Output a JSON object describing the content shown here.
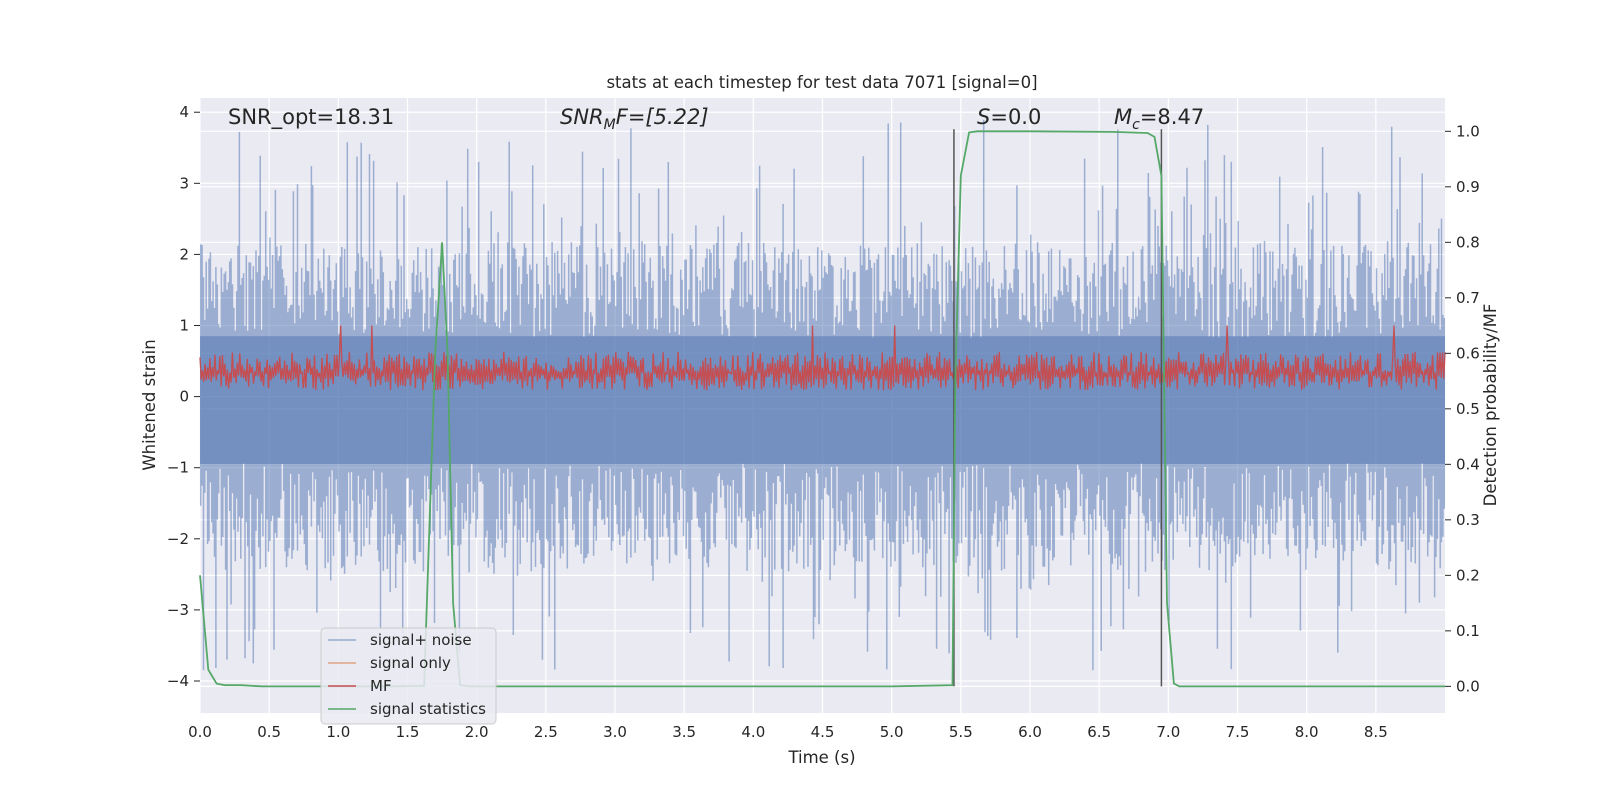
{
  "chart_data": {
    "type": "line",
    "title": "stats at each timestep for test data 7071 [signal=0]",
    "xlabel": "Time (s)",
    "ylabel_left": "Whitened strain",
    "ylabel_right": "Detection probability/MF",
    "xlim": [
      0.0,
      9.0
    ],
    "ylim_left": [
      -4.45,
      4.2
    ],
    "ylim_right": [
      -0.048,
      1.06
    ],
    "x_ticks": [
      "0.0",
      "0.5",
      "1.0",
      "1.5",
      "2.0",
      "2.5",
      "3.0",
      "3.5",
      "4.0",
      "4.5",
      "5.0",
      "5.5",
      "6.0",
      "6.5",
      "7.0",
      "7.5",
      "8.0",
      "8.5"
    ],
    "y_ticks_left": [
      "−4",
      "−3",
      "−2",
      "−1",
      "0",
      "1",
      "2",
      "3",
      "4"
    ],
    "y_ticks_right": [
      "0.0",
      "0.1",
      "0.2",
      "0.3",
      "0.4",
      "0.5",
      "0.6",
      "0.7",
      "0.8",
      "0.9",
      "1.0"
    ],
    "grid": true,
    "legend_position": "lower-left",
    "annotations": {
      "snr_opt": "SNR_opt=18.31",
      "snr_mf_main": "SNR",
      "snr_mf_sub": "M",
      "snr_mf_rest": "F=[5.22]",
      "s_main": "S",
      "s_rest": "=0.0",
      "mc_main": "M",
      "mc_sub": "c",
      "mc_rest": "=8.47"
    },
    "vlines_x": [
      5.45,
      6.95
    ],
    "noise_envelope": {
      "time_range": [
        0.0,
        9.0
      ],
      "typical_upper": 1.5,
      "typical_lower": -1.7,
      "peak_max": 3.9,
      "peak_min": -3.85,
      "color": "#4c72b0"
    },
    "mf_band": {
      "time_range": [
        0.0,
        9.0
      ],
      "typical_range": [
        0.09,
        0.63
      ],
      "peak_max": 1.0,
      "color": "#c44e52"
    },
    "series": [
      {
        "name": "signal+ noise",
        "color": "#4c72b0",
        "legend_label": "signal+ noise"
      },
      {
        "name": "signal only",
        "color": "#dd8452",
        "legend_label": "signal only"
      },
      {
        "name": "MF",
        "color": "#c44e52",
        "legend_label": "MF"
      },
      {
        "name": "signal statistics",
        "color": "#55a868",
        "legend_label": "signal statistics",
        "axis": "right",
        "x": [
          0.0,
          0.06,
          0.12,
          0.18,
          0.3,
          0.45,
          0.7,
          1.0,
          1.4,
          1.62,
          1.7,
          1.75,
          1.79,
          1.83,
          1.88,
          1.95,
          2.1,
          3.0,
          4.0,
          5.0,
          5.44,
          5.46,
          5.5,
          5.56,
          5.62,
          6.0,
          6.6,
          6.85,
          6.9,
          6.95,
          6.99,
          7.04,
          7.08,
          7.14,
          7.5,
          8.5,
          9.0
        ],
        "y": [
          0.2,
          0.03,
          0.005,
          0.002,
          0.002,
          0.0,
          0.0,
          0.0,
          0.0,
          0.001,
          0.6,
          0.8,
          0.6,
          0.15,
          0.002,
          0.0,
          0.0,
          0.0,
          0.0,
          0.0,
          0.002,
          0.55,
          0.92,
          0.998,
          1.0,
          1.0,
          0.999,
          0.997,
          0.99,
          0.92,
          0.15,
          0.005,
          0.0,
          0.0,
          0.0,
          0.0,
          0.0
        ]
      }
    ]
  }
}
